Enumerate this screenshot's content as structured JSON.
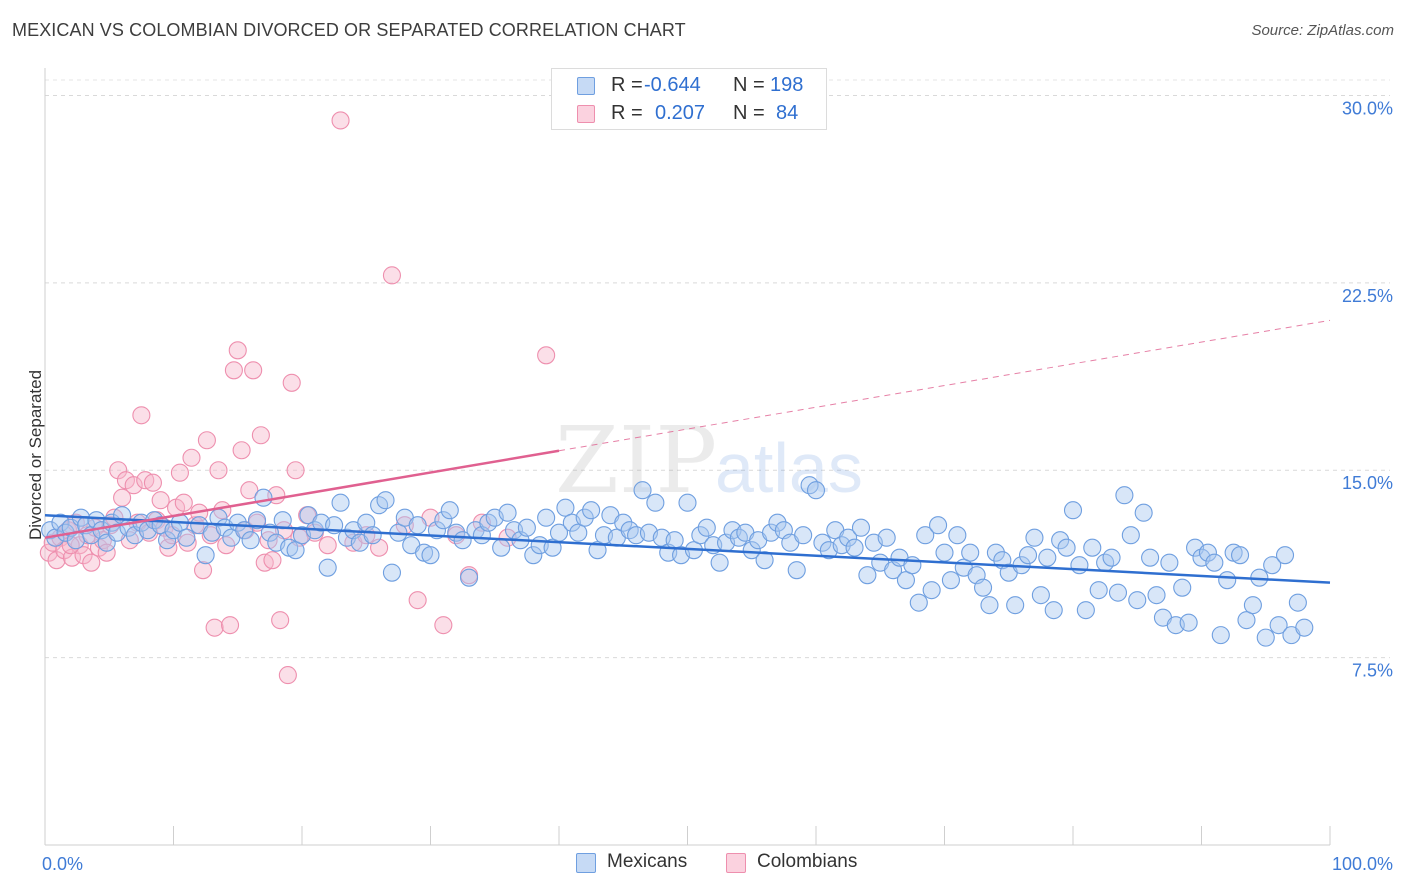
{
  "header": {
    "title": "MEXICAN VS COLOMBIAN DIVORCED OR SEPARATED CORRELATION CHART",
    "source": "Source: ZipAtlas.com"
  },
  "watermark": {
    "zip": "ZIP",
    "atlas": "atlas"
  },
  "legend": {
    "mexicans": {
      "r_label": "R =",
      "r_value": "-0.644",
      "n_label": "N =",
      "n_value": "198"
    },
    "colombians": {
      "r_label": "R =",
      "r_value": "0.207",
      "n_label": "N =",
      "n_value": "84"
    }
  },
  "bottom_legend": {
    "mexicans": "Mexicans",
    "colombians": "Colombians"
  },
  "colors": {
    "mexicans_fill": "#a9c8f0",
    "mexicans_stroke": "#6f9fe0",
    "mexicans_line": "#2f6fd0",
    "colombians_fill": "#f6b8cb",
    "colombians_stroke": "#ee8fae",
    "colombians_line": "#e06090",
    "tick_label": "#3f7bd6",
    "grid": "#d9d9d9"
  },
  "chart_data": {
    "type": "scatter",
    "title": "MEXICAN VS COLOMBIAN DIVORCED OR SEPARATED CORRELATION CHART",
    "xlabel": "",
    "ylabel": "Divorced or Separated",
    "xlim": [
      0,
      100
    ],
    "ylim": [
      0,
      31.5
    ],
    "x_tick_labels": [
      "0.0%",
      "100.0%"
    ],
    "y_ticks": [
      {
        "value": 7.5,
        "label": "7.5%"
      },
      {
        "value": 15.0,
        "label": "15.0%"
      },
      {
        "value": 22.5,
        "label": "22.5%"
      },
      {
        "value": 30.0,
        "label": "30.0%"
      }
    ],
    "grid": "horizontal-dashed",
    "legend_position": "top-center",
    "series": [
      {
        "name": "Mexicans",
        "r": -0.644,
        "n": 198,
        "trend": {
          "x0": 0,
          "y0": 13.2,
          "x1": 100,
          "y1": 10.5,
          "dashed_from": null
        },
        "points": [
          [
            0.4,
            12.6
          ],
          [
            0.8,
            12.3
          ],
          [
            1.2,
            12.9
          ],
          [
            1.6,
            12.5
          ],
          [
            2.0,
            12.7
          ],
          [
            2.4,
            12.2
          ],
          [
            2.8,
            13.1
          ],
          [
            3.2,
            12.8
          ],
          [
            3.6,
            12.4
          ],
          [
            4.0,
            13.0
          ],
          [
            4.4,
            12.6
          ],
          [
            4.8,
            12.1
          ],
          [
            5.2,
            12.9
          ],
          [
            5.6,
            12.5
          ],
          [
            6.0,
            13.2
          ],
          [
            6.5,
            12.7
          ],
          [
            7.0,
            12.4
          ],
          [
            7.5,
            12.9
          ],
          [
            8.0,
            12.6
          ],
          [
            8.5,
            13.0
          ],
          [
            9.0,
            12.8
          ],
          [
            9.5,
            12.2
          ],
          [
            10.0,
            12.6
          ],
          [
            10.5,
            12.9
          ],
          [
            11.0,
            12.3
          ],
          [
            12.0,
            12.8
          ],
          [
            12.5,
            11.6
          ],
          [
            13.0,
            12.5
          ],
          [
            13.5,
            13.1
          ],
          [
            14.0,
            12.7
          ],
          [
            14.5,
            12.3
          ],
          [
            15.0,
            12.9
          ],
          [
            15.5,
            12.6
          ],
          [
            16.0,
            12.2
          ],
          [
            16.5,
            13.0
          ],
          [
            17.0,
            13.9
          ],
          [
            17.5,
            12.5
          ],
          [
            18.0,
            12.1
          ],
          [
            18.5,
            13.0
          ],
          [
            19.0,
            11.9
          ],
          [
            19.5,
            11.8
          ],
          [
            20.0,
            12.4
          ],
          [
            20.5,
            13.2
          ],
          [
            21.0,
            12.6
          ],
          [
            21.5,
            12.9
          ],
          [
            22.0,
            11.1
          ],
          [
            22.5,
            12.8
          ],
          [
            23.0,
            13.7
          ],
          [
            23.5,
            12.3
          ],
          [
            24.0,
            12.6
          ],
          [
            24.5,
            12.1
          ],
          [
            25.0,
            12.9
          ],
          [
            25.5,
            12.4
          ],
          [
            26.0,
            13.6
          ],
          [
            26.5,
            13.8
          ],
          [
            27.0,
            10.9
          ],
          [
            27.5,
            12.5
          ],
          [
            28.0,
            13.1
          ],
          [
            28.5,
            12.0
          ],
          [
            29.0,
            12.8
          ],
          [
            29.5,
            11.7
          ],
          [
            30.0,
            11.6
          ],
          [
            30.5,
            12.6
          ],
          [
            31.0,
            13.0
          ],
          [
            31.5,
            13.4
          ],
          [
            32.0,
            12.5
          ],
          [
            32.5,
            12.2
          ],
          [
            33.0,
            10.7
          ],
          [
            33.5,
            12.6
          ],
          [
            34.0,
            12.4
          ],
          [
            34.5,
            12.9
          ],
          [
            35.0,
            13.1
          ],
          [
            35.5,
            11.9
          ],
          [
            36.0,
            13.3
          ],
          [
            36.5,
            12.6
          ],
          [
            37.0,
            12.2
          ],
          [
            37.5,
            12.7
          ],
          [
            38.0,
            11.6
          ],
          [
            38.5,
            12.0
          ],
          [
            39.0,
            13.1
          ],
          [
            39.5,
            11.9
          ],
          [
            40.0,
            12.5
          ],
          [
            40.5,
            13.5
          ],
          [
            41.0,
            12.9
          ],
          [
            41.5,
            12.5
          ],
          [
            42.0,
            13.1
          ],
          [
            42.5,
            13.4
          ],
          [
            43.0,
            11.8
          ],
          [
            43.5,
            12.4
          ],
          [
            44.0,
            13.2
          ],
          [
            44.5,
            12.3
          ],
          [
            45.0,
            12.9
          ],
          [
            45.5,
            12.6
          ],
          [
            46.0,
            12.4
          ],
          [
            46.5,
            14.2
          ],
          [
            47.0,
            12.5
          ],
          [
            47.5,
            13.7
          ],
          [
            48.0,
            12.3
          ],
          [
            48.5,
            11.7
          ],
          [
            49.0,
            12.2
          ],
          [
            49.5,
            11.6
          ],
          [
            50.0,
            13.7
          ],
          [
            50.5,
            11.8
          ],
          [
            51.0,
            12.4
          ],
          [
            51.5,
            12.7
          ],
          [
            52.0,
            12.0
          ],
          [
            52.5,
            11.3
          ],
          [
            53.0,
            12.1
          ],
          [
            53.5,
            12.6
          ],
          [
            54.0,
            12.3
          ],
          [
            54.5,
            12.5
          ],
          [
            55.0,
            11.8
          ],
          [
            55.5,
            12.2
          ],
          [
            56.0,
            11.4
          ],
          [
            56.5,
            12.5
          ],
          [
            57.0,
            12.9
          ],
          [
            57.5,
            12.6
          ],
          [
            58.0,
            12.1
          ],
          [
            58.5,
            11.0
          ],
          [
            59.0,
            12.4
          ],
          [
            59.5,
            14.4
          ],
          [
            60.0,
            14.2
          ],
          [
            60.5,
            12.1
          ],
          [
            61.0,
            11.8
          ],
          [
            61.5,
            12.6
          ],
          [
            62.0,
            12.0
          ],
          [
            62.5,
            12.3
          ],
          [
            63.0,
            11.9
          ],
          [
            63.5,
            12.7
          ],
          [
            64.0,
            10.8
          ],
          [
            64.5,
            12.1
          ],
          [
            65.0,
            11.3
          ],
          [
            65.5,
            12.3
          ],
          [
            66.0,
            11.0
          ],
          [
            66.5,
            11.5
          ],
          [
            67.0,
            10.6
          ],
          [
            67.5,
            11.2
          ],
          [
            68.0,
            9.7
          ],
          [
            68.5,
            12.4
          ],
          [
            69.0,
            10.2
          ],
          [
            69.5,
            12.8
          ],
          [
            70.0,
            11.7
          ],
          [
            70.5,
            10.6
          ],
          [
            71.0,
            12.4
          ],
          [
            71.5,
            11.1
          ],
          [
            72.0,
            11.7
          ],
          [
            72.5,
            10.8
          ],
          [
            73.0,
            10.3
          ],
          [
            73.5,
            9.6
          ],
          [
            74.0,
            11.7
          ],
          [
            74.5,
            11.4
          ],
          [
            75.0,
            10.9
          ],
          [
            75.5,
            9.6
          ],
          [
            76.0,
            11.2
          ],
          [
            76.5,
            11.6
          ],
          [
            77.0,
            12.3
          ],
          [
            77.5,
            10.0
          ],
          [
            78.0,
            11.5
          ],
          [
            78.5,
            9.4
          ],
          [
            79.0,
            12.2
          ],
          [
            79.5,
            11.9
          ],
          [
            80.0,
            13.4
          ],
          [
            80.5,
            11.2
          ],
          [
            81.0,
            9.4
          ],
          [
            81.5,
            11.9
          ],
          [
            82.0,
            10.2
          ],
          [
            82.5,
            11.3
          ],
          [
            83.0,
            11.5
          ],
          [
            83.5,
            10.1
          ],
          [
            84.0,
            14.0
          ],
          [
            84.5,
            12.4
          ],
          [
            85.0,
            9.8
          ],
          [
            85.5,
            13.3
          ],
          [
            86.0,
            11.5
          ],
          [
            86.5,
            10.0
          ],
          [
            87.0,
            9.1
          ],
          [
            87.5,
            11.3
          ],
          [
            88.0,
            8.8
          ],
          [
            88.5,
            10.3
          ],
          [
            89.0,
            8.9
          ],
          [
            89.5,
            11.9
          ],
          [
            90.0,
            11.5
          ],
          [
            90.5,
            11.7
          ],
          [
            91.0,
            11.3
          ],
          [
            91.5,
            8.4
          ],
          [
            92.0,
            10.6
          ],
          [
            92.5,
            11.7
          ],
          [
            93.0,
            11.6
          ],
          [
            93.5,
            9.0
          ],
          [
            94.0,
            9.6
          ],
          [
            94.5,
            10.7
          ],
          [
            95.0,
            8.3
          ],
          [
            95.5,
            11.2
          ],
          [
            96.0,
            8.8
          ],
          [
            96.5,
            11.6
          ],
          [
            97.0,
            8.4
          ],
          [
            97.5,
            9.7
          ],
          [
            98.0,
            8.7
          ]
        ]
      },
      {
        "name": "Colombians",
        "r": 0.207,
        "n": 84,
        "trend": {
          "x0": 0,
          "y0": 12.3,
          "x1": 100,
          "y1": 21.0,
          "dashed_from": 40
        },
        "points": [
          [
            0.3,
            11.7
          ],
          [
            0.6,
            12.1
          ],
          [
            0.9,
            11.4
          ],
          [
            1.2,
            12.3
          ],
          [
            1.5,
            11.8
          ],
          [
            1.8,
            12.6
          ],
          [
            2.1,
            11.5
          ],
          [
            2.4,
            12.9
          ],
          [
            2.7,
            12.0
          ],
          [
            3.0,
            11.6
          ],
          [
            3.3,
            12.4
          ],
          [
            3.6,
            11.3
          ],
          [
            3.9,
            12.7
          ],
          [
            4.2,
            11.9
          ],
          [
            4.5,
            12.2
          ],
          [
            4.8,
            11.7
          ],
          [
            5.1,
            12.8
          ],
          [
            5.4,
            13.1
          ],
          [
            5.7,
            15.0
          ],
          [
            6.0,
            13.9
          ],
          [
            6.3,
            14.6
          ],
          [
            6.6,
            12.2
          ],
          [
            6.9,
            14.4
          ],
          [
            7.2,
            12.9
          ],
          [
            7.5,
            17.2
          ],
          [
            7.8,
            14.6
          ],
          [
            8.1,
            12.5
          ],
          [
            8.4,
            14.5
          ],
          [
            8.7,
            13.0
          ],
          [
            9.0,
            13.8
          ],
          [
            9.3,
            12.7
          ],
          [
            9.6,
            11.9
          ],
          [
            9.9,
            12.4
          ],
          [
            10.2,
            13.5
          ],
          [
            10.5,
            14.9
          ],
          [
            10.8,
            13.7
          ],
          [
            11.1,
            12.1
          ],
          [
            11.4,
            15.5
          ],
          [
            11.7,
            12.8
          ],
          [
            12.0,
            13.3
          ],
          [
            12.3,
            11.0
          ],
          [
            12.6,
            16.2
          ],
          [
            12.9,
            12.4
          ],
          [
            13.2,
            8.7
          ],
          [
            13.5,
            15.0
          ],
          [
            13.8,
            13.4
          ],
          [
            14.1,
            12.0
          ],
          [
            14.4,
            8.8
          ],
          [
            14.7,
            19.0
          ],
          [
            15.0,
            19.8
          ],
          [
            15.3,
            15.8
          ],
          [
            15.6,
            12.6
          ],
          [
            15.9,
            14.2
          ],
          [
            16.2,
            19.0
          ],
          [
            16.5,
            12.9
          ],
          [
            16.8,
            16.4
          ],
          [
            17.1,
            11.3
          ],
          [
            17.4,
            12.2
          ],
          [
            17.7,
            11.4
          ],
          [
            18.0,
            14.0
          ],
          [
            18.3,
            9.0
          ],
          [
            18.6,
            12.6
          ],
          [
            18.9,
            6.8
          ],
          [
            19.2,
            18.5
          ],
          [
            19.5,
            15.0
          ],
          [
            19.8,
            12.3
          ],
          [
            20.4,
            13.2
          ],
          [
            21.0,
            12.5
          ],
          [
            22.0,
            12.0
          ],
          [
            23.0,
            29.0
          ],
          [
            24.0,
            12.1
          ],
          [
            25.0,
            12.4
          ],
          [
            26.0,
            11.9
          ],
          [
            27.0,
            22.8
          ],
          [
            28.0,
            12.8
          ],
          [
            29.0,
            9.8
          ],
          [
            30.0,
            13.1
          ],
          [
            31.0,
            8.8
          ],
          [
            32.0,
            12.4
          ],
          [
            33.0,
            10.8
          ],
          [
            34.0,
            12.9
          ],
          [
            36.0,
            12.3
          ],
          [
            39.0,
            19.6
          ],
          [
            2.0,
            12.0
          ]
        ]
      }
    ]
  }
}
